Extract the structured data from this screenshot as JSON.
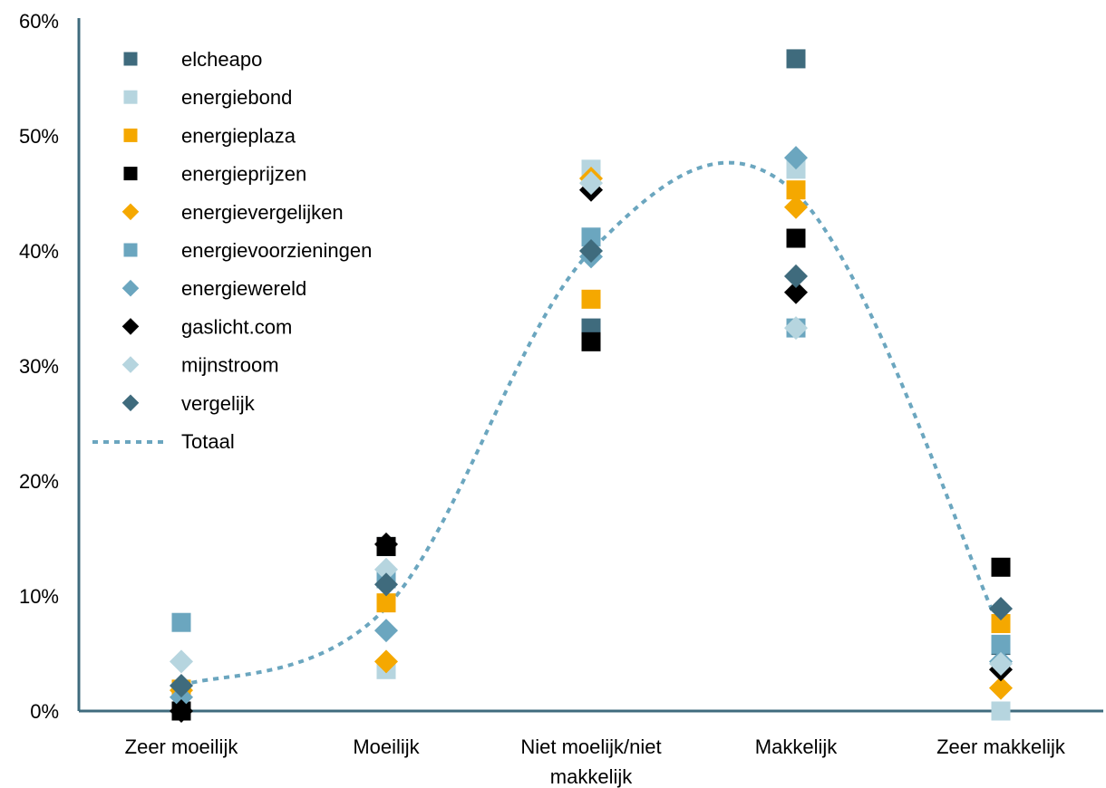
{
  "chart_data": {
    "type": "scatter",
    "title": "",
    "xlabel": "",
    "ylabel": "",
    "categories": [
      "Zeer moeilijk",
      "Moeilijk",
      "Niet moelijk/niet makkelijk",
      "Makkelijk",
      "Zeer makkelijk"
    ],
    "y_ticks": [
      "0%",
      "10%",
      "20%",
      "30%",
      "40%",
      "50%",
      "60%"
    ],
    "ylim": [
      0,
      60
    ],
    "grid": false,
    "legend_position": "top-left",
    "axis_color": "#3f6b7d",
    "series": [
      {
        "name": "elcheapo",
        "marker": "square",
        "color": "#3f6b7d",
        "values": [
          0,
          14.3,
          33.3,
          56.7,
          5.7
        ]
      },
      {
        "name": "energiebond",
        "marker": "square",
        "color": "#b6d5df",
        "values": [
          0,
          3.6,
          47.1,
          47.1,
          0
        ]
      },
      {
        "name": "energieplaza",
        "marker": "square",
        "color": "#f5a800",
        "values": [
          1.9,
          9.4,
          35.8,
          45.3,
          7.6
        ]
      },
      {
        "name": "energieprijzen",
        "marker": "square",
        "color": "#000000",
        "values": [
          0,
          14.3,
          32.1,
          41.1,
          12.5
        ]
      },
      {
        "name": "energievergelijken",
        "marker": "diamond",
        "color": "#f5a800",
        "values": [
          1.8,
          4.3,
          46.3,
          43.8,
          2.0
        ]
      },
      {
        "name": "energievoorzieningen",
        "marker": "square",
        "color": "#6ba6bf",
        "values": [
          7.7,
          11.5,
          41.2,
          33.3,
          5.8
        ]
      },
      {
        "name": "energiewereld",
        "marker": "diamond",
        "color": "#6ba6bf",
        "values": [
          1.2,
          7.0,
          39.5,
          48.1,
          4.3
        ]
      },
      {
        "name": "gaslicht.com",
        "marker": "diamond",
        "color": "#000000",
        "values": [
          0,
          14.5,
          45.3,
          36.4,
          3.6
        ]
      },
      {
        "name": "mijnstroom",
        "marker": "diamond",
        "color": "#b6d5df",
        "values": [
          4.3,
          12.3,
          45.9,
          33.3,
          4.1
        ]
      },
      {
        "name": "vergelijk",
        "marker": "diamond",
        "color": "#3f6b7d",
        "values": [
          2.2,
          11.0,
          40.0,
          37.8,
          8.9
        ]
      }
    ],
    "total": {
      "name": "Totaal",
      "color": "#6ba6bf",
      "values": [
        2.2,
        9.0,
        40.0,
        45.0,
        7.0
      ]
    }
  }
}
